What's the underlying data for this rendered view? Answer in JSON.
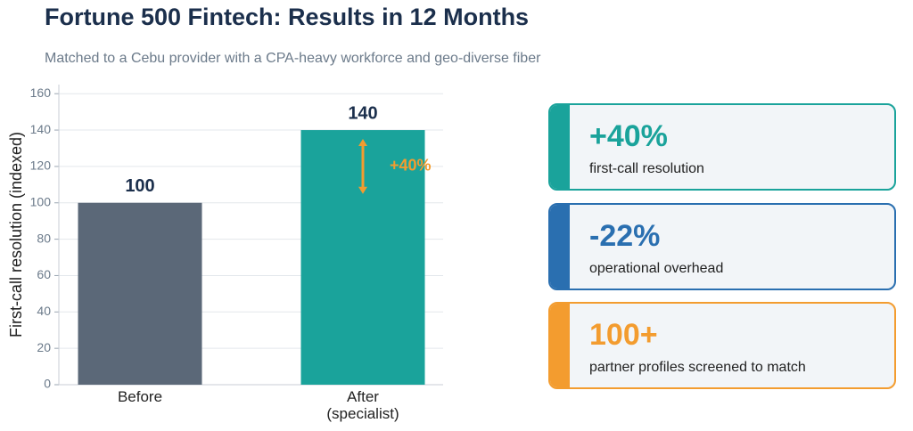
{
  "title": "Fortune 500 Fintech: Results in 12 Months",
  "subtitle": "Matched to a Cebu provider with a CPA-heavy workforce and geo-diverse fiber",
  "chart_data": {
    "type": "bar",
    "categories": [
      "Before",
      "After\n(specialist)"
    ],
    "values": [
      100,
      140
    ],
    "colors": [
      "#5b6878",
      "#1aa39b"
    ],
    "y_label": "First-call resolution (indexed)",
    "ylim": [
      0,
      165
    ],
    "yticks": [
      0,
      20,
      40,
      60,
      80,
      100,
      120,
      140,
      160
    ],
    "grid": true,
    "annotation": {
      "text": "+40%",
      "color": "#f39c2f"
    }
  },
  "cards": [
    {
      "value": "+40%",
      "label": "first-call resolution",
      "color": "#1aa39b"
    },
    {
      "value": "-22%",
      "label": "operational overhead",
      "color": "#2a6fb0"
    },
    {
      "value": "100+",
      "label": "partner profiles screened to match",
      "color": "#f39c2f"
    }
  ]
}
